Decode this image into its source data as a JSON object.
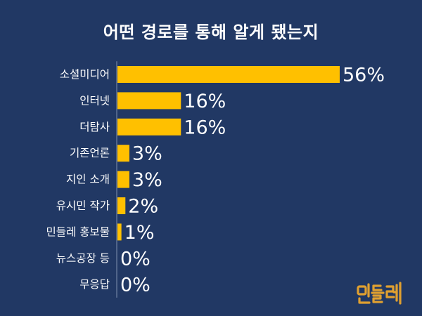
{
  "chart_data": {
    "type": "bar",
    "orientation": "horizontal",
    "title": "어떤 경로를 통해 알게 됐는지",
    "categories": [
      "소셜미디어",
      "인터넷",
      "더탐사",
      "기존언론",
      "지인 소개",
      "유시민 작가",
      "민들레 홍보물",
      "뉴스공장 등",
      "무응답"
    ],
    "values": [
      56,
      16,
      16,
      3,
      3,
      2,
      1,
      0,
      0
    ],
    "value_labels": [
      "56%",
      "16%",
      "16%",
      "3%",
      "3%",
      "2%",
      "1%",
      "0%",
      "0%"
    ],
    "unit": "%",
    "xlim": [
      0,
      56
    ],
    "grid": false,
    "legend": "none",
    "colors": {
      "background": "#213864",
      "bar": "#FFC000",
      "text": "#FFFFFF",
      "axis": "#7F8FB0",
      "logo": "#E0A030"
    }
  },
  "logo": {
    "text": "민들레",
    "icon": "mindle-logo-icon"
  }
}
